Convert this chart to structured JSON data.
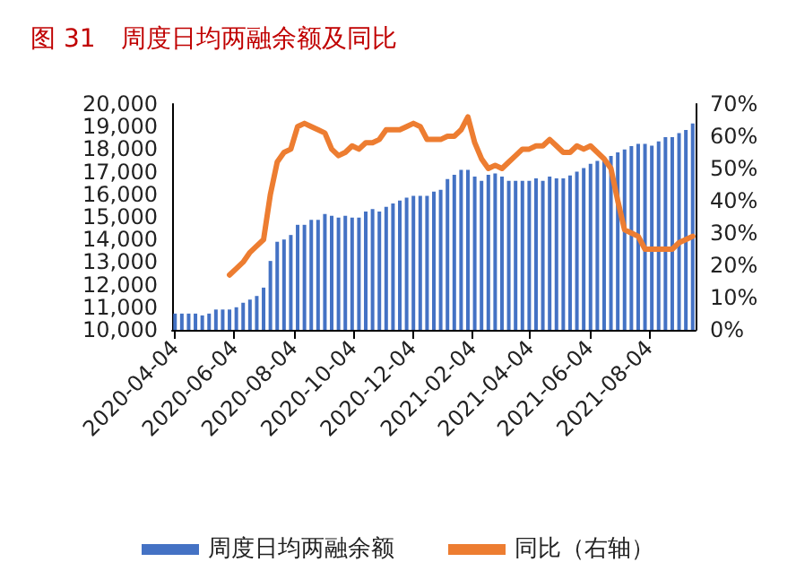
{
  "chart_data": {
    "type": "bar",
    "title": "图 31　周度日均两融余额及同比",
    "x": [
      "2020-04-04",
      "2020-04-11",
      "2020-04-18",
      "2020-04-25",
      "2020-05-02",
      "2020-05-09",
      "2020-05-16",
      "2020-05-23",
      "2020-05-30",
      "2020-06-06",
      "2020-06-13",
      "2020-06-20",
      "2020-06-27",
      "2020-07-04",
      "2020-07-11",
      "2020-07-18",
      "2020-07-25",
      "2020-08-01",
      "2020-08-08",
      "2020-08-15",
      "2020-08-22",
      "2020-08-29",
      "2020-09-05",
      "2020-09-12",
      "2020-09-19",
      "2020-09-26",
      "2020-10-03",
      "2020-10-10",
      "2020-10-17",
      "2020-10-24",
      "2020-10-31",
      "2020-11-07",
      "2020-11-14",
      "2020-11-21",
      "2020-11-28",
      "2020-12-05",
      "2020-12-12",
      "2020-12-19",
      "2020-12-26",
      "2021-01-02",
      "2021-01-09",
      "2021-01-16",
      "2021-01-23",
      "2021-01-30",
      "2021-02-06",
      "2021-02-13",
      "2021-02-20",
      "2021-02-27",
      "2021-03-06",
      "2021-03-13",
      "2021-03-20",
      "2021-03-27",
      "2021-04-03",
      "2021-04-10",
      "2021-04-17",
      "2021-04-24",
      "2021-05-01",
      "2021-05-08",
      "2021-05-15",
      "2021-05-22",
      "2021-05-29",
      "2021-06-05",
      "2021-06-12",
      "2021-06-19",
      "2021-06-26",
      "2021-07-03",
      "2021-07-10",
      "2021-07-17",
      "2021-07-24",
      "2021-07-31",
      "2021-08-07",
      "2021-08-14",
      "2021-08-21",
      "2021-08-28",
      "2021-09-04",
      "2021-09-11",
      "2021-09-18"
    ],
    "series": [
      {
        "name": "周度日均两融余额",
        "color": "#4472c4",
        "values": [
          10720,
          10720,
          10720,
          10720,
          10640,
          10720,
          10900,
          10900,
          10900,
          11000,
          11200,
          11340,
          11500,
          11870,
          13050,
          13900,
          14000,
          14200,
          14650,
          14650,
          14870,
          14870,
          15130,
          15050,
          14970,
          15050,
          14970,
          14970,
          15240,
          15350,
          15240,
          15450,
          15600,
          15720,
          15850,
          15930,
          15930,
          15930,
          16120,
          16200,
          16680,
          16870,
          17080,
          17080,
          16790,
          16600,
          16870,
          16920,
          16790,
          16600,
          16600,
          16600,
          16600,
          16710,
          16600,
          16790,
          16710,
          16710,
          16840,
          17000,
          17160,
          17350,
          17480,
          17620,
          17700,
          17860,
          17990,
          18130,
          18230,
          18230,
          18150,
          18340,
          18530,
          18530,
          18710,
          18850,
          19140
        ]
      },
      {
        "name": "同比（右轴）",
        "type": "line",
        "axis": "y2",
        "color": "#ed7d31",
        "values": [
          null,
          null,
          null,
          null,
          null,
          null,
          null,
          null,
          17,
          19,
          21,
          24,
          26,
          28,
          42,
          52,
          55,
          56,
          63,
          64,
          63,
          62,
          61,
          56,
          54,
          55,
          57,
          56,
          58,
          58,
          59,
          62,
          62,
          62,
          63,
          64,
          63,
          59,
          59,
          59,
          60,
          60,
          62,
          66,
          58,
          53,
          50,
          51,
          50,
          52,
          54,
          56,
          56,
          57,
          57,
          59,
          57,
          55,
          55,
          57,
          56,
          57,
          55,
          53,
          50,
          40,
          31,
          30,
          29,
          25,
          25,
          25,
          25,
          25,
          27,
          28,
          29
        ]
      }
    ],
    "xlim": [
      "2020-04-01",
      "2021-09-21"
    ],
    "xticks": [
      "2020-04-04",
      "2020-06-04",
      "2020-08-04",
      "2020-10-04",
      "2020-12-04",
      "2021-02-04",
      "2021-04-04",
      "2021-06-04",
      "2021-08-04"
    ],
    "ylim": [
      10000,
      20000
    ],
    "yticks": [
      {
        "value": 10000,
        "label": "10,000"
      },
      {
        "value": 11000,
        "label": "11,000"
      },
      {
        "value": 12000,
        "label": "12,000"
      },
      {
        "value": 13000,
        "label": "13,000"
      },
      {
        "value": 14000,
        "label": "14,000"
      },
      {
        "value": 15000,
        "label": "15,000"
      },
      {
        "value": 16000,
        "label": "16,000"
      },
      {
        "value": 17000,
        "label": "17,000"
      },
      {
        "value": 18000,
        "label": "18,000"
      },
      {
        "value": 19000,
        "label": "19,000"
      },
      {
        "value": 20000,
        "label": "20,000"
      }
    ],
    "y2lim": [
      0,
      70
    ],
    "y2ticks": [
      {
        "value": 0,
        "label": "0%"
      },
      {
        "value": 10,
        "label": "10%"
      },
      {
        "value": 20,
        "label": "20%"
      },
      {
        "value": 30,
        "label": "30%"
      },
      {
        "value": 40,
        "label": "40%"
      },
      {
        "value": 50,
        "label": "50%"
      },
      {
        "value": 60,
        "label": "60%"
      },
      {
        "value": 70,
        "label": "70%"
      }
    ],
    "grid": false,
    "legend": "bottom",
    "marker": "none",
    "line_style": "solid"
  }
}
